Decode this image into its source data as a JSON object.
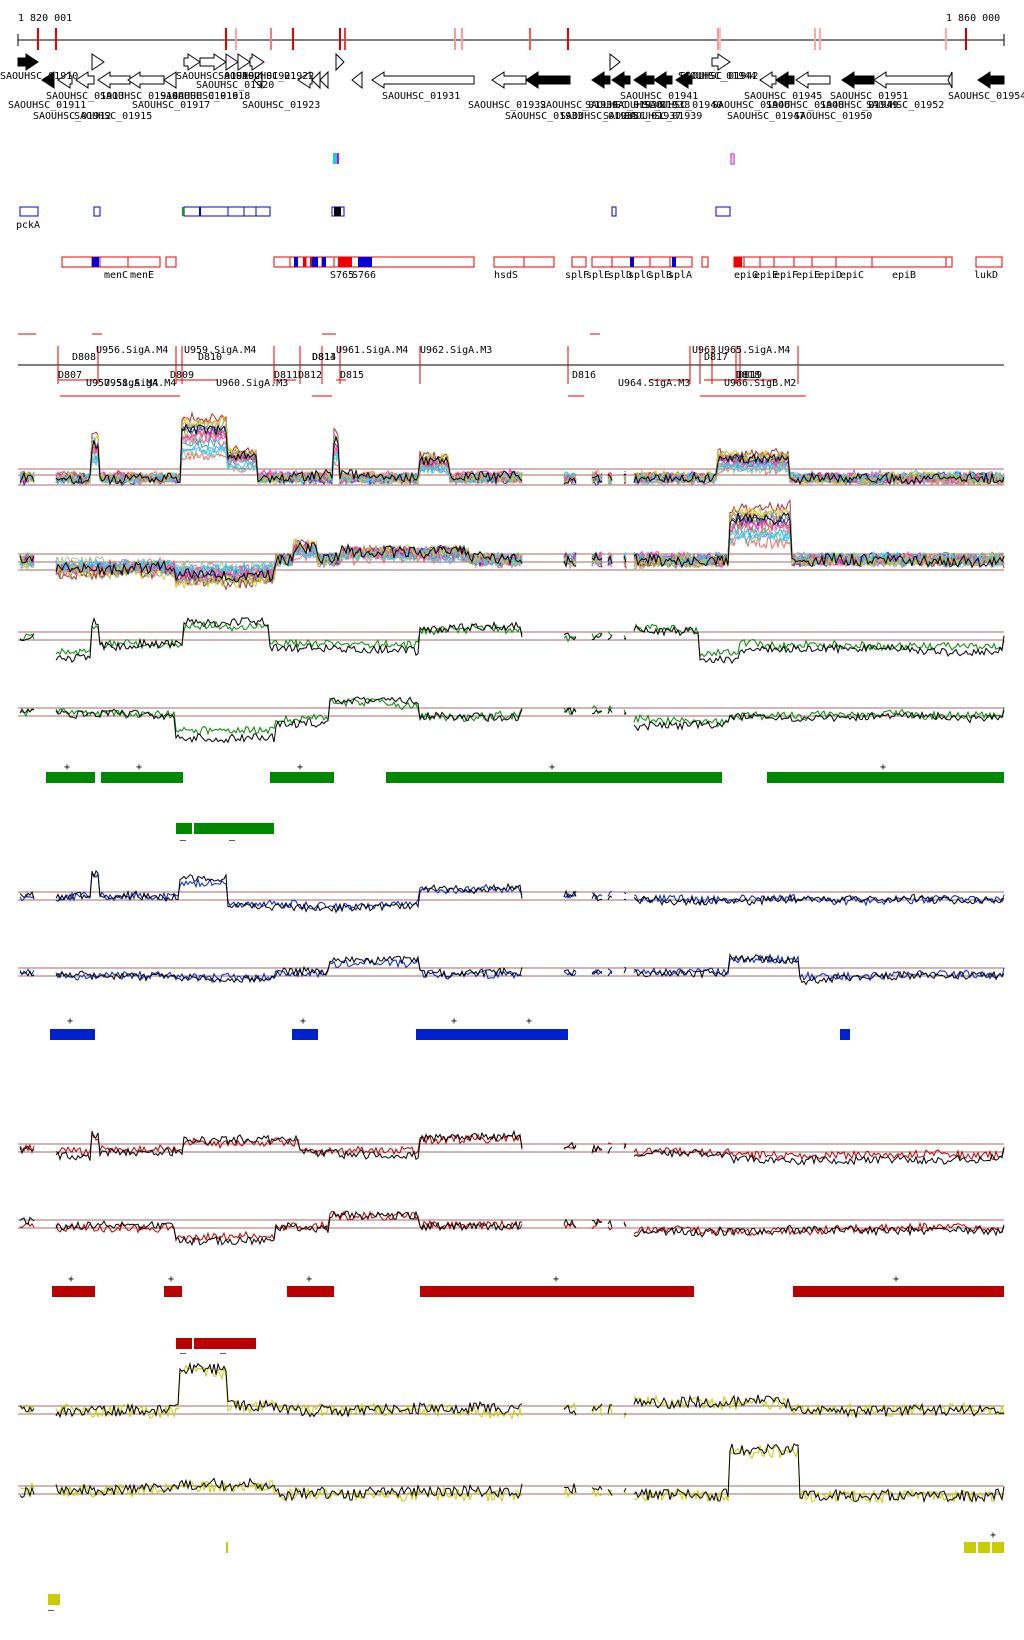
{
  "browser": {
    "coordinate_start": "1 820 001",
    "coordinate_end": "1 860 000"
  },
  "colors": {
    "green": "#008800",
    "blue": "#0022cc",
    "red": "#bb0000",
    "yellow": "#c8cc00",
    "feature_red": "#ee0000",
    "feature_blue": "#0000dd",
    "baseline": "#8b3a3a"
  },
  "genes": {
    "labels": [
      "SAOUHSC_01910",
      "SAOUHSC_01911",
      "SAOUHSC_01912",
      "SAOUHSC_01913",
      "SAOUHSC_01914",
      "SAOUHSC_01915",
      "SAOUHSC_01916",
      "SAOUHSC_01917",
      "SAOUHSC_01918",
      "SAOUHSC_01919",
      "SAOUHSC_01920",
      "SAOUHSC_01921",
      "SAOUHSC_01922",
      "SAOUHSC_01923",
      "SAOUHSC_01931",
      "SAOUHSC_01932",
      "SAOUHSC_01933",
      "SAOUHSC_01934",
      "SAOUHSC_01935",
      "SAOUHSC_01936",
      "SAOUHSC_01937",
      "SAOUHSC_01938",
      "SAOUHSC_01939",
      "SAOUHSC_01940",
      "SAOUHSC_01941",
      "SAOUHSC_01942",
      "SAOUHSC_01944",
      "SAOUHSC_01945",
      "SAOUHSC_01946",
      "SAOUHSC_01947",
      "SAOUHSC_01948",
      "SAOUHSC_01949",
      "SAOUHSC_01950",
      "SAOUHSC_01951",
      "SAOUHSC_01952",
      "SAOUHSC_01954"
    ]
  },
  "blue_track": {
    "label": "pckA"
  },
  "red_track": {
    "labels": [
      "menC",
      "menE",
      "S765",
      "S766",
      "hsdS",
      "splF",
      "splE",
      "splD",
      "splC",
      "splB",
      "splA",
      "epiG",
      "epiE",
      "epiF",
      "epiE",
      "epiD",
      "epiC",
      "epiB",
      "lukD"
    ]
  },
  "transcript_track": {
    "labels": [
      "D807",
      "D808",
      "U956.SigA.M4",
      "U957.SigA.M4",
      "U958.SigA.M4",
      "D809",
      "U959.SigA.M4",
      "D810",
      "U960.SigA.M3",
      "D811",
      "D812",
      "D813",
      "D814",
      "U961.SigA.M4",
      "D815",
      "U962.SigA.M3",
      "D816",
      "U963",
      "U964.SigA.M3",
      "D817",
      "U965.SigA.M4",
      "U966.SigB.M2",
      "D818",
      "D819"
    ]
  },
  "segments": {
    "green_plus": "+",
    "green_minus": "–",
    "blue_plus": "+",
    "red_plus": "+",
    "red_minus": "–",
    "yellow_plus": "+",
    "yellow_minus": "–"
  },
  "expression": [
    {
      "name": "multi-condition plus strand",
      "color": "multi"
    },
    {
      "name": "multi-condition minus strand",
      "color": "multi"
    },
    {
      "name": "green condition plus strand",
      "color": "#008800"
    },
    {
      "name": "green condition minus strand",
      "color": "#008800"
    },
    {
      "name": "blue condition plus strand",
      "color": "#0022cc"
    },
    {
      "name": "blue condition minus strand",
      "color": "#0022cc"
    },
    {
      "name": "red condition plus strand",
      "color": "#bb0000"
    },
    {
      "name": "red condition minus strand",
      "color": "#bb0000"
    },
    {
      "name": "yellow condition plus strand",
      "color": "#c8cc00"
    },
    {
      "name": "yellow condition minus strand",
      "color": "#c8cc00"
    }
  ]
}
